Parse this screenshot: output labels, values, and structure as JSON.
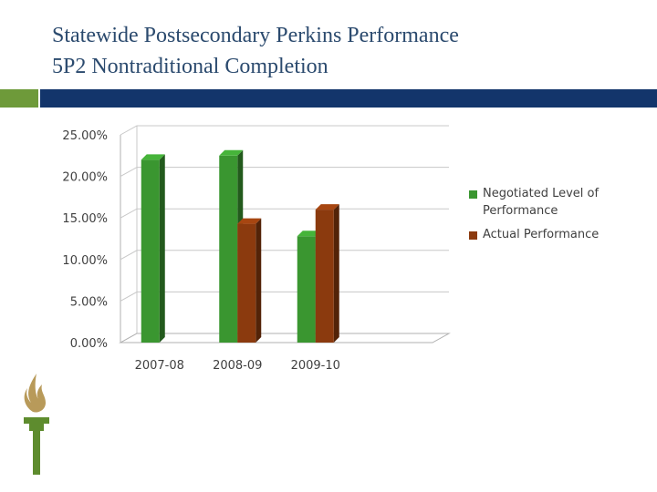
{
  "slide": {
    "title_line1": "Statewide Postsecondary Perkins Performance",
    "title_line2": "5P2 Nontraditional Completion"
  },
  "colors": {
    "title": "#2b4a6e",
    "accent_green": "#6e9a3a",
    "accent_blue": "#13356b",
    "torch_flame": "#b89a5a",
    "torch_handle": "#5e8c2e"
  },
  "chart_data": {
    "type": "bar",
    "categories": [
      "2007-08",
      "2008-09",
      "2009-10",
      ""
    ],
    "series": [
      {
        "name": "Negotiated Level of Performance",
        "color": "#3a9630",
        "values": [
          22.0,
          22.5,
          12.8,
          null
        ]
      },
      {
        "name": "Actual Performance",
        "color": "#8b3a0e",
        "values": [
          null,
          14.3,
          16.0,
          null
        ]
      }
    ],
    "y_ticks": [
      "0.00%",
      "5.00%",
      "10.00%",
      "15.00%",
      "20.00%",
      "25.00%"
    ],
    "ylim": [
      0,
      25
    ],
    "grid": true,
    "legend_position": "right",
    "style": "3d"
  }
}
